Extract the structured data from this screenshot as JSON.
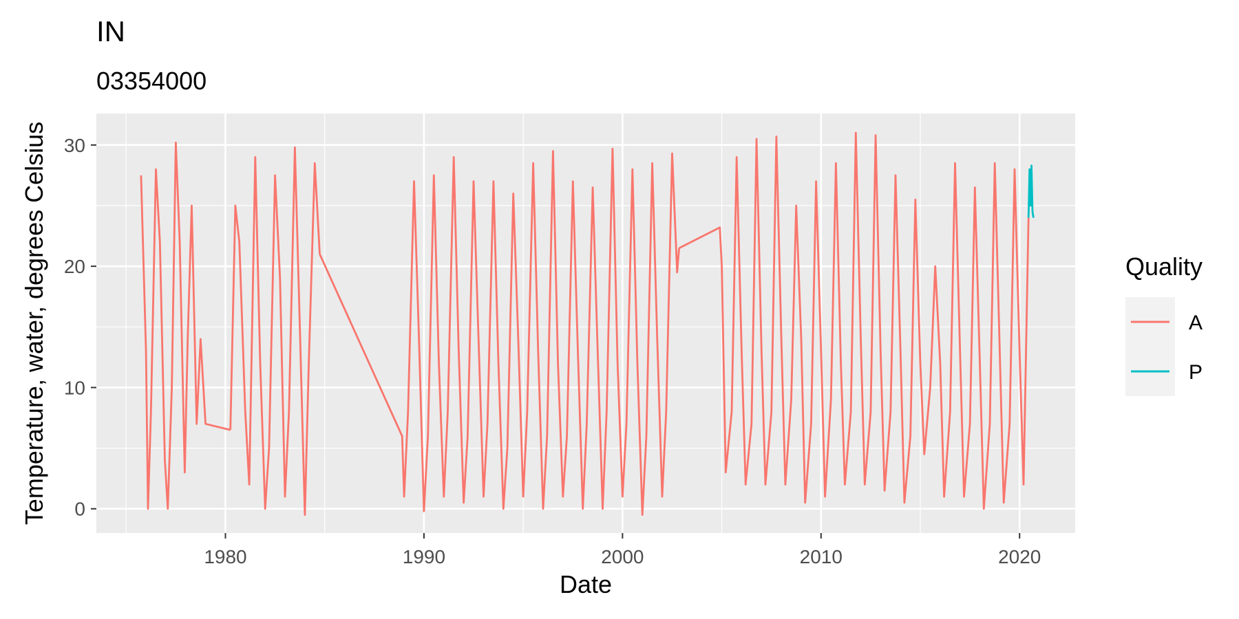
{
  "chart_data": {
    "type": "line",
    "title": "IN",
    "subtitle": "03354000",
    "xlabel": "Date",
    "ylabel": "Temperature, water, degrees Celsius",
    "xlim": [
      1973.5,
      2022.8
    ],
    "ylim": [
      -2.0,
      32.6
    ],
    "x_ticks": [
      1980,
      1990,
      2000,
      2010,
      2020
    ],
    "y_ticks": [
      0,
      10,
      20,
      30
    ],
    "grid": true,
    "legend": {
      "title": "Quality",
      "position": "right"
    },
    "series": [
      {
        "name": "A",
        "color": "#F8766D",
        "segments": [
          {
            "x": [
              1975.75,
              1976.0,
              1976.1,
              1976.25,
              1976.5,
              1976.7,
              1976.95,
              1977.1,
              1977.3,
              1977.5,
              1977.7,
              1977.95,
              1978.1,
              1978.3,
              1978.55,
              1978.75,
              1979.0,
              1980.25
            ],
            "y": [
              27.5,
              13,
              0,
              8,
              28,
              22,
              4,
              0,
              10,
              30.2,
              22,
              3,
              14,
              25,
              7,
              14,
              7,
              6.5
            ]
          },
          {
            "x": [
              1980.25,
              1980.5,
              1980.7,
              1981.0,
              1981.2,
              1981.5,
              1981.75,
              1982.0,
              1982.2,
              1982.5,
              1982.75,
              1983.0,
              1983.2,
              1983.5,
              1983.75,
              1984.0,
              1984.2,
              1984.5,
              1984.75
            ],
            "y": [
              6.5,
              25,
              22,
              8,
              2,
              29,
              12,
              0,
              5,
              27.5,
              19,
              1,
              8,
              29.8,
              15,
              -0.5,
              12,
              28.5,
              21
            ]
          },
          {
            "x": [
              1984.75,
              1988.9,
              1989.0,
              1989.2,
              1989.5,
              1989.75,
              1990.0,
              1990.2,
              1990.5,
              1990.75,
              1991.0,
              1991.2,
              1991.5,
              1991.75,
              1992.0,
              1992.2,
              1992.5,
              1992.75,
              1993.0,
              1993.2,
              1993.5,
              1993.75,
              1994.0,
              1994.2,
              1994.5,
              1994.75,
              1995.0,
              1995.2,
              1995.5,
              1995.75,
              1996.0,
              1996.2,
              1996.5,
              1996.75,
              1997.0,
              1997.2,
              1997.5,
              1997.75,
              1998.0,
              1998.2,
              1998.5,
              1998.75,
              1999.0,
              1999.2,
              1999.5,
              1999.75,
              2000.0,
              2000.2,
              2000.5,
              2000.75,
              2001.0,
              2001.2,
              2001.5,
              2001.75,
              2002.0,
              2002.2,
              2002.5,
              2002.75,
              2002.85
            ],
            "y": [
              21,
              6,
              1,
              8,
              27,
              14,
              -0.2,
              6,
              27.5,
              12,
              1,
              8,
              29,
              13,
              0.5,
              6,
              27,
              14,
              1,
              7,
              27,
              12,
              0,
              5,
              26,
              14,
              1,
              8,
              28.5,
              13,
              0,
              6,
              29.5,
              12,
              1,
              6,
              27,
              13,
              0,
              7,
              26.5,
              13,
              0,
              8,
              29.7,
              12,
              1,
              7,
              28,
              12,
              -0.5,
              6,
              28.5,
              14,
              1,
              8,
              29.3,
              19.5,
              21.5
            ]
          },
          {
            "x": [
              2002.85,
              2004.9,
              2005.0,
              2005.2,
              2005.5,
              2005.75,
              2006.0,
              2006.2,
              2006.5,
              2006.75,
              2007.0,
              2007.2,
              2007.5,
              2007.75,
              2008.0,
              2008.2,
              2008.5,
              2008.75,
              2009.0,
              2009.2,
              2009.5,
              2009.75,
              2010.0,
              2010.2,
              2010.5,
              2010.75,
              2011.0,
              2011.2,
              2011.5,
              2011.75,
              2012.0,
              2012.2,
              2012.5,
              2012.75,
              2013.0,
              2013.2,
              2013.5,
              2013.75,
              2014.0,
              2014.2,
              2014.5,
              2014.75,
              2015.0,
              2015.2,
              2015.5,
              2015.75,
              2016.0,
              2016.2,
              2016.5,
              2016.75,
              2017.0,
              2017.2,
              2017.5,
              2017.75,
              2018.0,
              2018.2,
              2018.5,
              2018.75,
              2019.0,
              2019.2,
              2019.5,
              2019.75,
              2020.0,
              2020.2,
              2020.45
            ],
            "y": [
              21.5,
              23.2,
              20,
              3,
              8,
              29,
              13,
              2,
              7,
              30.5,
              13,
              2,
              8,
              30.7,
              14,
              2,
              9,
              25,
              14,
              0.5,
              7,
              27,
              13,
              1,
              9,
              28.5,
              12,
              2,
              8,
              31,
              14,
              2,
              8,
              30.8,
              13,
              1.5,
              8,
              27.5,
              13,
              0.5,
              6,
              25.5,
              12,
              4.5,
              10,
              20,
              12,
              1,
              8,
              28.5,
              13,
              1,
              7,
              26.5,
              12,
              0,
              7,
              28.5,
              13,
              0.5,
              7,
              28,
              13,
              2,
              24
            ]
          }
        ]
      },
      {
        "name": "P",
        "color": "#00BFC4",
        "segments": [
          {
            "x": [
              2020.45,
              2020.5,
              2020.55,
              2020.6,
              2020.65,
              2020.7
            ],
            "y": [
              24,
              28,
              25,
              28.3,
              24.5,
              24
            ]
          }
        ]
      }
    ]
  }
}
